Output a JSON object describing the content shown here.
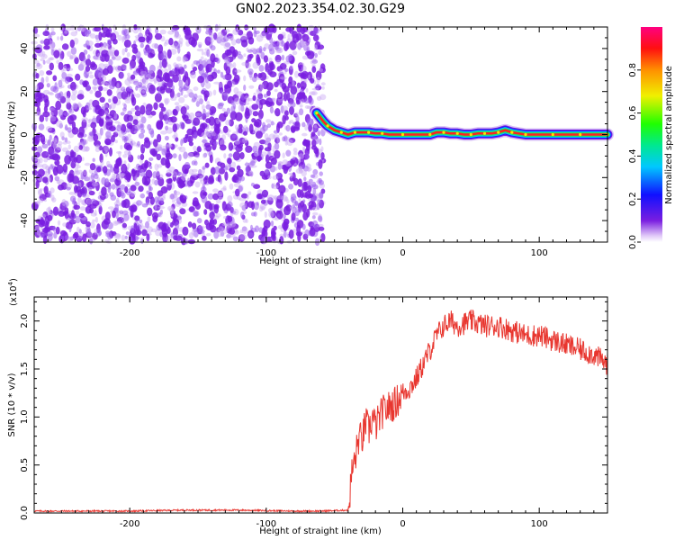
{
  "title": "GN02.2023.354.02.30.G29",
  "colors": {
    "snr_line": "#e8362f",
    "scatter_purple": "#7a1ee0",
    "scatter_light": "#c9a8f5"
  },
  "chart_data": [
    {
      "type": "heatmap",
      "xlabel": "Height of straight line (km)",
      "ylabel": "Frequency (Hz)",
      "xlim": [
        -270,
        150
      ],
      "ylim": [
        -50,
        50
      ],
      "xticks": [
        -200,
        -100,
        0,
        100
      ],
      "yticks": [
        -40,
        -20,
        0,
        20,
        40
      ],
      "noise_region_x": [
        -270,
        -58
      ],
      "ridge": {
        "x": [
          -63,
          -58,
          -55,
          -50,
          -45,
          -40,
          -35,
          -30,
          -25,
          -20,
          -15,
          -10,
          0,
          10,
          20,
          25,
          30,
          35,
          40,
          45,
          50,
          55,
          60,
          65,
          70,
          75,
          80,
          85,
          90,
          100,
          110,
          120,
          130,
          140,
          150
        ],
        "y": [
          10,
          6,
          4,
          2,
          1,
          0,
          1,
          1,
          1,
          0.5,
          0.5,
          0,
          0,
          0,
          0,
          1,
          1,
          0.5,
          0.5,
          0,
          0,
          0.5,
          0.5,
          0.5,
          1,
          2,
          1,
          0.5,
          0,
          0,
          0,
          0,
          0,
          0,
          0
        ]
      },
      "colorbar": {
        "label": "Normalized spectral amplitude",
        "ticks": [
          0.0,
          0.2,
          0.4,
          0.6,
          0.8
        ],
        "range": [
          0,
          1
        ],
        "colormap": "rainbow"
      }
    },
    {
      "type": "line",
      "xlabel": "Height of straight line (km)",
      "ylabel": "SNR (10 * v/v)",
      "scale_note": "(x10",
      "scale_exp": "4",
      "scale_close": ")",
      "xlim": [
        -270,
        150
      ],
      "ylim": [
        0.0,
        2.25
      ],
      "xticks": [
        -200,
        -100,
        0,
        100
      ],
      "yticks": [
        0.0,
        0.5,
        1.0,
        1.5,
        2.0
      ],
      "series": [
        {
          "x": [
            -270,
            -240,
            -200,
            -160,
            -120,
            -80,
            -60,
            -40,
            -37,
            -35,
            -32,
            -30,
            -27,
            -25,
            -22,
            -20,
            -15,
            -10,
            -5,
            0,
            5,
            10,
            15,
            20,
            25,
            30,
            35,
            40,
            50,
            60,
            70,
            80,
            90,
            100,
            110,
            120,
            130,
            140,
            150
          ],
          "y": [
            0.02,
            0.02,
            0.02,
            0.03,
            0.03,
            0.02,
            0.02,
            0.03,
            0.45,
            0.55,
            0.8,
            0.75,
            0.95,
            0.85,
            1.0,
            0.9,
            1.05,
            1.1,
            1.15,
            1.25,
            1.3,
            1.4,
            1.55,
            1.7,
            1.85,
            1.95,
            2.0,
            1.95,
            2.0,
            1.95,
            1.95,
            1.9,
            1.85,
            1.85,
            1.8,
            1.75,
            1.7,
            1.65,
            1.55
          ]
        }
      ]
    }
  ]
}
